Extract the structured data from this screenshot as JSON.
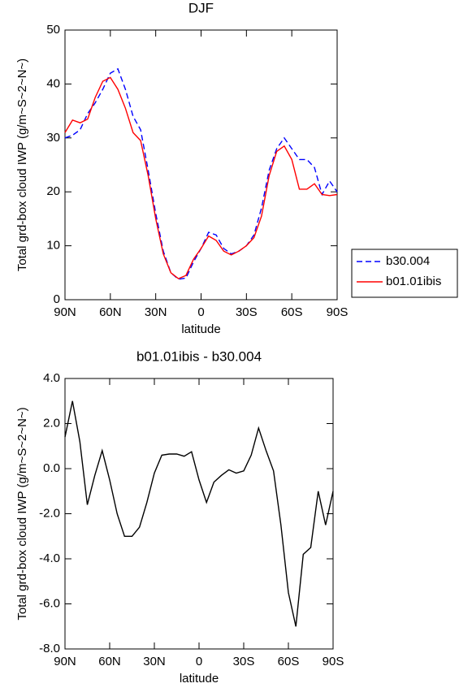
{
  "chart_data": [
    {
      "type": "line",
      "title": "DJF",
      "xlabel": "latitude",
      "ylabel": "Total grd-box cloud IWP (g/m~S~2~N~)",
      "x": [
        90,
        85,
        80,
        75,
        70,
        65,
        60,
        55,
        50,
        45,
        40,
        35,
        30,
        25,
        20,
        15,
        10,
        5,
        0,
        -5,
        -10,
        -15,
        -20,
        -25,
        -30,
        -35,
        -40,
        -45,
        -50,
        -55,
        -60,
        -65,
        -70,
        -75,
        -80,
        -85,
        -90
      ],
      "series": [
        {
          "name": "b30.004",
          "color": "#0000ff",
          "linestyle": "dashed",
          "values": [
            30,
            30.5,
            31.5,
            34.5,
            36.5,
            39,
            42,
            42.8,
            39,
            34,
            31.5,
            24,
            16,
            9,
            5,
            3.8,
            4,
            7,
            9.5,
            12.5,
            12,
            9.5,
            8.5,
            9,
            10,
            12,
            17,
            24,
            28,
            30,
            28,
            26,
            26,
            24.5,
            19.5,
            22,
            20
          ]
        },
        {
          "name": "b01.01ibis",
          "color": "#ff0000",
          "linestyle": "solid",
          "values": [
            31,
            33.3,
            32.8,
            33.5,
            37.5,
            40.5,
            41.2,
            39,
            35.5,
            31,
            29.5,
            23,
            15,
            8.5,
            5,
            3.9,
            4.5,
            7.5,
            9.5,
            11.8,
            11,
            9,
            8.3,
            9,
            10,
            11.5,
            15.5,
            23,
            27.5,
            28.5,
            26,
            20.5,
            20.5,
            21.5,
            19.5,
            19.3,
            19.5
          ]
        }
      ],
      "xlim": [
        90,
        -90
      ],
      "xticks": [
        {
          "value": 90,
          "label": "90N"
        },
        {
          "value": 60,
          "label": "60N"
        },
        {
          "value": 30,
          "label": "30N"
        },
        0,
        {
          "value": -30,
          "label": "30S"
        },
        {
          "value": -60,
          "label": "60S"
        },
        {
          "value": -90,
          "label": "90S"
        }
      ],
      "ylim": [
        0,
        50
      ],
      "yticks": [
        0,
        10,
        20,
        30,
        40,
        50
      ],
      "legend": "right"
    },
    {
      "type": "line",
      "title": "b01.01ibis - b30.004",
      "xlabel": "latitude",
      "ylabel": "Total grd-box cloud IWP (g/m~S~2~N~)",
      "x": [
        90,
        85,
        80,
        75,
        70,
        65,
        60,
        55,
        50,
        45,
        40,
        35,
        30,
        25,
        20,
        15,
        10,
        5,
        0,
        -5,
        -10,
        -15,
        -20,
        -25,
        -30,
        -35,
        -40,
        -45,
        -50,
        -55,
        -60,
        -65,
        -70,
        -75,
        -80,
        -85,
        -90
      ],
      "series": [
        {
          "color": "#000000",
          "linestyle": "solid",
          "values": [
            1.4,
            3.0,
            1.2,
            -1.6,
            -0.3,
            0.8,
            -0.5,
            -2.0,
            -3.0,
            -3.0,
            -2.6,
            -1.5,
            -0.2,
            0.6,
            0.65,
            0.65,
            0.55,
            0.75,
            -0.5,
            -1.5,
            -0.6,
            -0.3,
            -0.05,
            -0.2,
            -0.1,
            0.6,
            1.8,
            0.8,
            -0.1,
            -2.5,
            -5.5,
            -7.0,
            -3.8,
            -3.5,
            -1.0,
            -2.5,
            -1.0
          ]
        }
      ],
      "xlim": [
        90,
        -90
      ],
      "xticks": [
        {
          "value": 90,
          "label": "90N"
        },
        {
          "value": 60,
          "label": "60N"
        },
        {
          "value": 30,
          "label": "30N"
        },
        0,
        {
          "value": -30,
          "label": "30S"
        },
        {
          "value": -60,
          "label": "60S"
        },
        {
          "value": -90,
          "label": "90S"
        }
      ],
      "ylim": [
        -8,
        4
      ],
      "yticks": [
        {
          "value": -8,
          "label": "-8.0"
        },
        {
          "value": -6,
          "label": "-6.0"
        },
        {
          "value": -4,
          "label": "-4.0"
        },
        {
          "value": -2,
          "label": "-2.0"
        },
        {
          "value": 0,
          "label": "0.0"
        },
        {
          "value": 2,
          "label": "2.0"
        },
        {
          "value": 4,
          "label": "4.0"
        }
      ]
    }
  ]
}
